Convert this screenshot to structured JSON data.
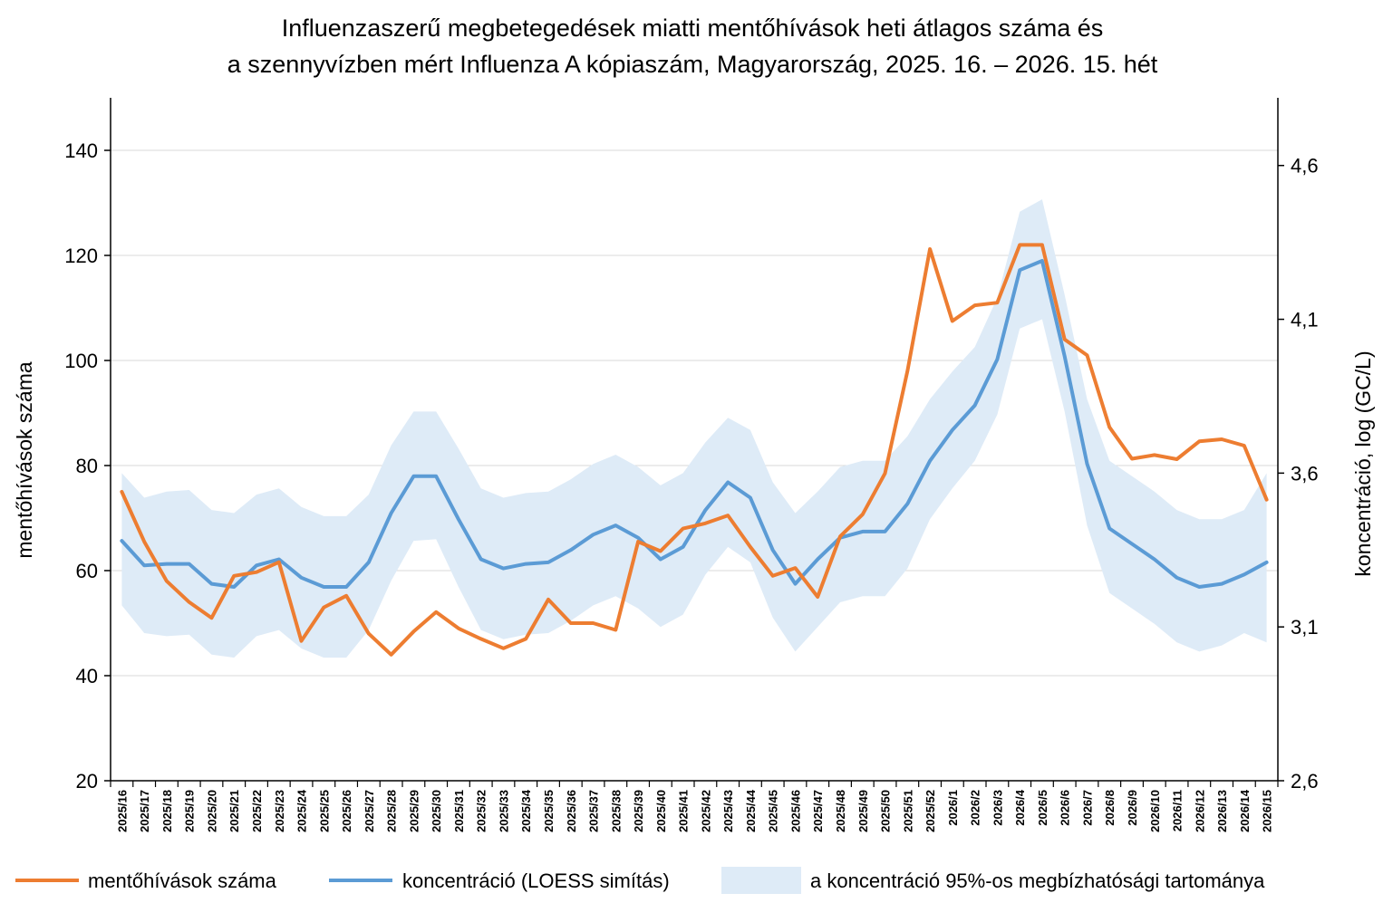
{
  "chart_data": {
    "type": "line",
    "title": [
      "Influenzaszerű megbetegedések miatti mentőhívások heti átlagos száma és",
      "a szennyvízben mért Influenza A kópiaszám, Magyarország, 2025. 16. – 2026. 15. hét"
    ],
    "ylabel_left": "mentőhívások száma",
    "ylabel_right": "koncentráció, log (GC/L)",
    "ylim_left": [
      20,
      150
    ],
    "yticks_left": [
      "20",
      "40",
      "60",
      "80",
      "100",
      "120",
      "140"
    ],
    "ylim_right": [
      2.6,
      4.82
    ],
    "yticks_right": [
      "2,6",
      "3,1",
      "3,6",
      "4,1",
      "4,6"
    ],
    "grid": "horizontal",
    "legend_position": "bottom",
    "categories": [
      "2025/16",
      "2025/17",
      "2025/18",
      "2025/19",
      "2025/20",
      "2025/21",
      "2025/22",
      "2025/23",
      "2025/24",
      "2025/25",
      "2025/26",
      "2025/27",
      "2025/28",
      "2025/29",
      "2025/30",
      "2025/31",
      "2025/32",
      "2025/33",
      "2025/34",
      "2025/35",
      "2025/36",
      "2025/37",
      "2025/38",
      "2025/39",
      "2025/40",
      "2025/41",
      "2025/42",
      "2025/43",
      "2025/44",
      "2025/45",
      "2025/46",
      "2025/47",
      "2025/48",
      "2025/49",
      "2025/50",
      "2025/51",
      "2025/52",
      "2026/1",
      "2026/2",
      "2026/3",
      "2026/4",
      "2026/5",
      "2026/6",
      "2026/7",
      "2026/8",
      "2026/9",
      "2026/10",
      "2026/11",
      "2026/12",
      "2026/13",
      "2026/14",
      "2026/15"
    ],
    "series": [
      {
        "name": "mentőhívások száma",
        "axis": "left",
        "color": "#ED7D31",
        "values": [
          75,
          65.5,
          58,
          54,
          51,
          59,
          59.7,
          61.6,
          46.6,
          53,
          55.2,
          48,
          44,
          48.4,
          52.1,
          49,
          47,
          45.2,
          47,
          54.5,
          50,
          50,
          48.7,
          65.5,
          63.7,
          68,
          69,
          70.5,
          64.5,
          59,
          60.5,
          55,
          66.5,
          70.7,
          78.5,
          98,
          121.2,
          107.5,
          110.5,
          111,
          122,
          122,
          104,
          101,
          87.3,
          81.3,
          82,
          81.2,
          84.6,
          85,
          83.8,
          73.5
        ]
      },
      {
        "name": "koncentráció (LOESS simítás)",
        "axis": "right",
        "color": "#5B9BD5",
        "values": [
          3.38,
          3.3,
          3.305,
          3.305,
          3.24,
          3.23,
          3.3,
          3.32,
          3.26,
          3.23,
          3.23,
          3.31,
          3.47,
          3.59,
          3.59,
          3.45,
          3.32,
          3.29,
          3.305,
          3.31,
          3.35,
          3.4,
          3.43,
          3.39,
          3.32,
          3.36,
          3.48,
          3.57,
          3.52,
          3.35,
          3.24,
          3.32,
          3.39,
          3.41,
          3.41,
          3.5,
          3.64,
          3.74,
          3.82,
          3.97,
          4.26,
          4.29,
          3.98,
          3.63,
          3.42,
          3.37,
          3.32,
          3.26,
          3.23,
          3.24,
          3.27,
          3.31
        ]
      }
    ],
    "band": {
      "name": "a koncentráció 95%-os megbízhatósági tartománya",
      "axis": "right",
      "color": "#DEEBF7",
      "lower": [
        3.17,
        3.08,
        3.07,
        3.075,
        3.01,
        3.0,
        3.07,
        3.09,
        3.03,
        3.0,
        3.0,
        3.09,
        3.25,
        3.38,
        3.385,
        3.23,
        3.09,
        3.06,
        3.075,
        3.08,
        3.12,
        3.17,
        3.2,
        3.16,
        3.1,
        3.14,
        3.27,
        3.36,
        3.31,
        3.13,
        3.02,
        3.1,
        3.18,
        3.2,
        3.2,
        3.29,
        3.45,
        3.55,
        3.64,
        3.79,
        4.07,
        4.1,
        3.8,
        3.43,
        3.21,
        3.16,
        3.11,
        3.05,
        3.02,
        3.04,
        3.08,
        3.05
      ],
      "upper": [
        3.6,
        3.52,
        3.54,
        3.545,
        3.48,
        3.47,
        3.53,
        3.55,
        3.49,
        3.46,
        3.46,
        3.53,
        3.69,
        3.8,
        3.8,
        3.68,
        3.55,
        3.52,
        3.535,
        3.54,
        3.58,
        3.63,
        3.66,
        3.62,
        3.56,
        3.6,
        3.7,
        3.78,
        3.74,
        3.57,
        3.47,
        3.54,
        3.62,
        3.64,
        3.64,
        3.72,
        3.84,
        3.93,
        4.01,
        4.17,
        4.45,
        4.49,
        4.18,
        3.84,
        3.64,
        3.59,
        3.54,
        3.48,
        3.45,
        3.45,
        3.48,
        3.6
      ]
    }
  }
}
